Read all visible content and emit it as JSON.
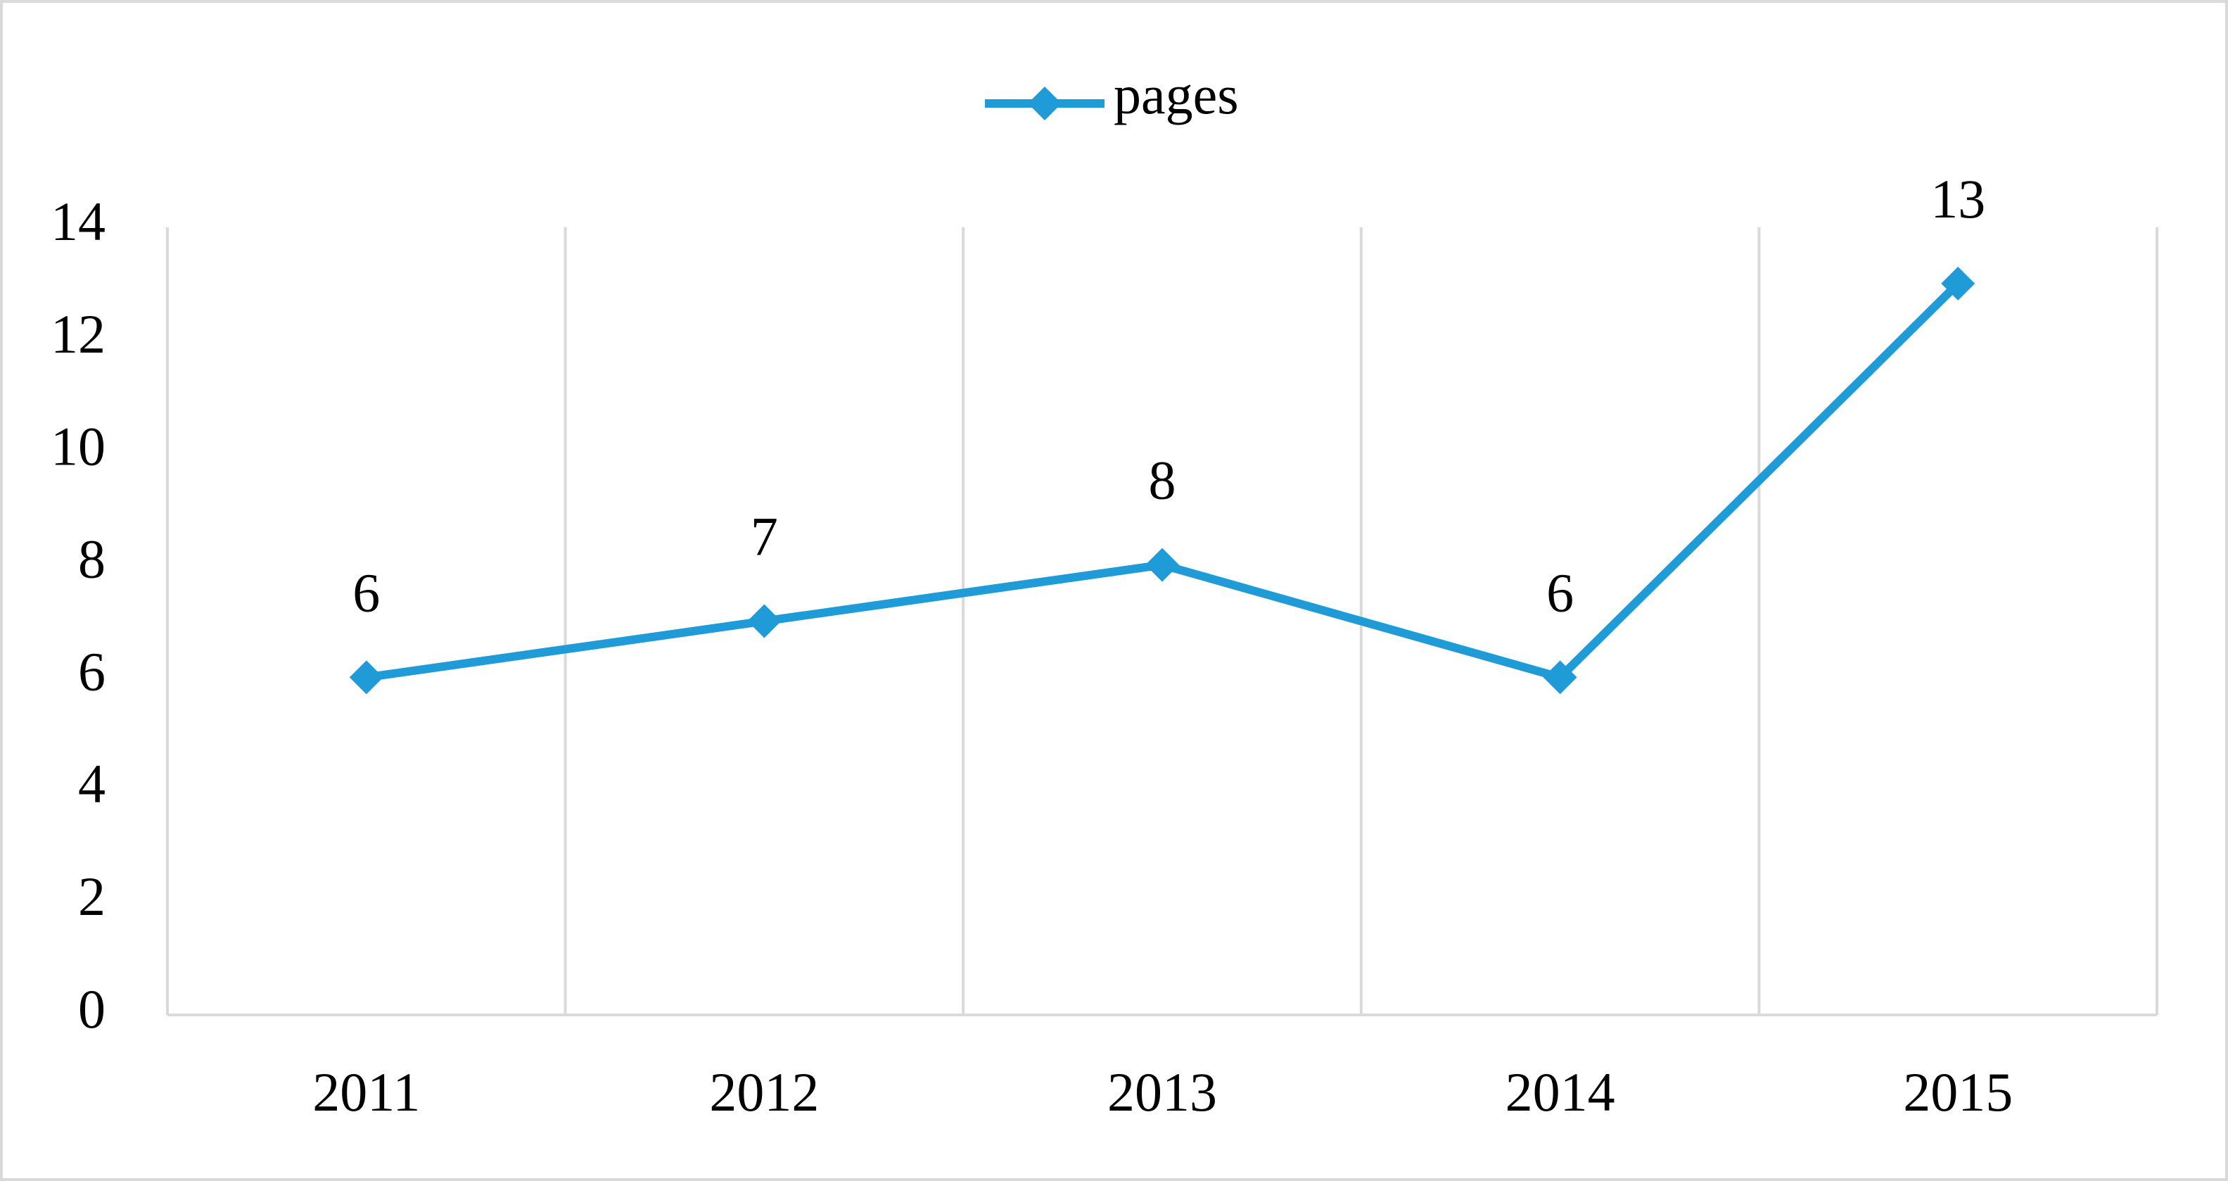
{
  "chart_data": {
    "type": "line",
    "categories": [
      "2011",
      "2012",
      "2013",
      "2014",
      "2015"
    ],
    "series": [
      {
        "name": "pages",
        "color": "#1f9bd7",
        "values": [
          6,
          7,
          8,
          6,
          13
        ]
      }
    ],
    "ylim": [
      0,
      14
    ],
    "yticks": [
      0,
      2,
      4,
      6,
      8,
      10,
      12,
      14
    ],
    "legend": "top",
    "data_labels": true
  }
}
